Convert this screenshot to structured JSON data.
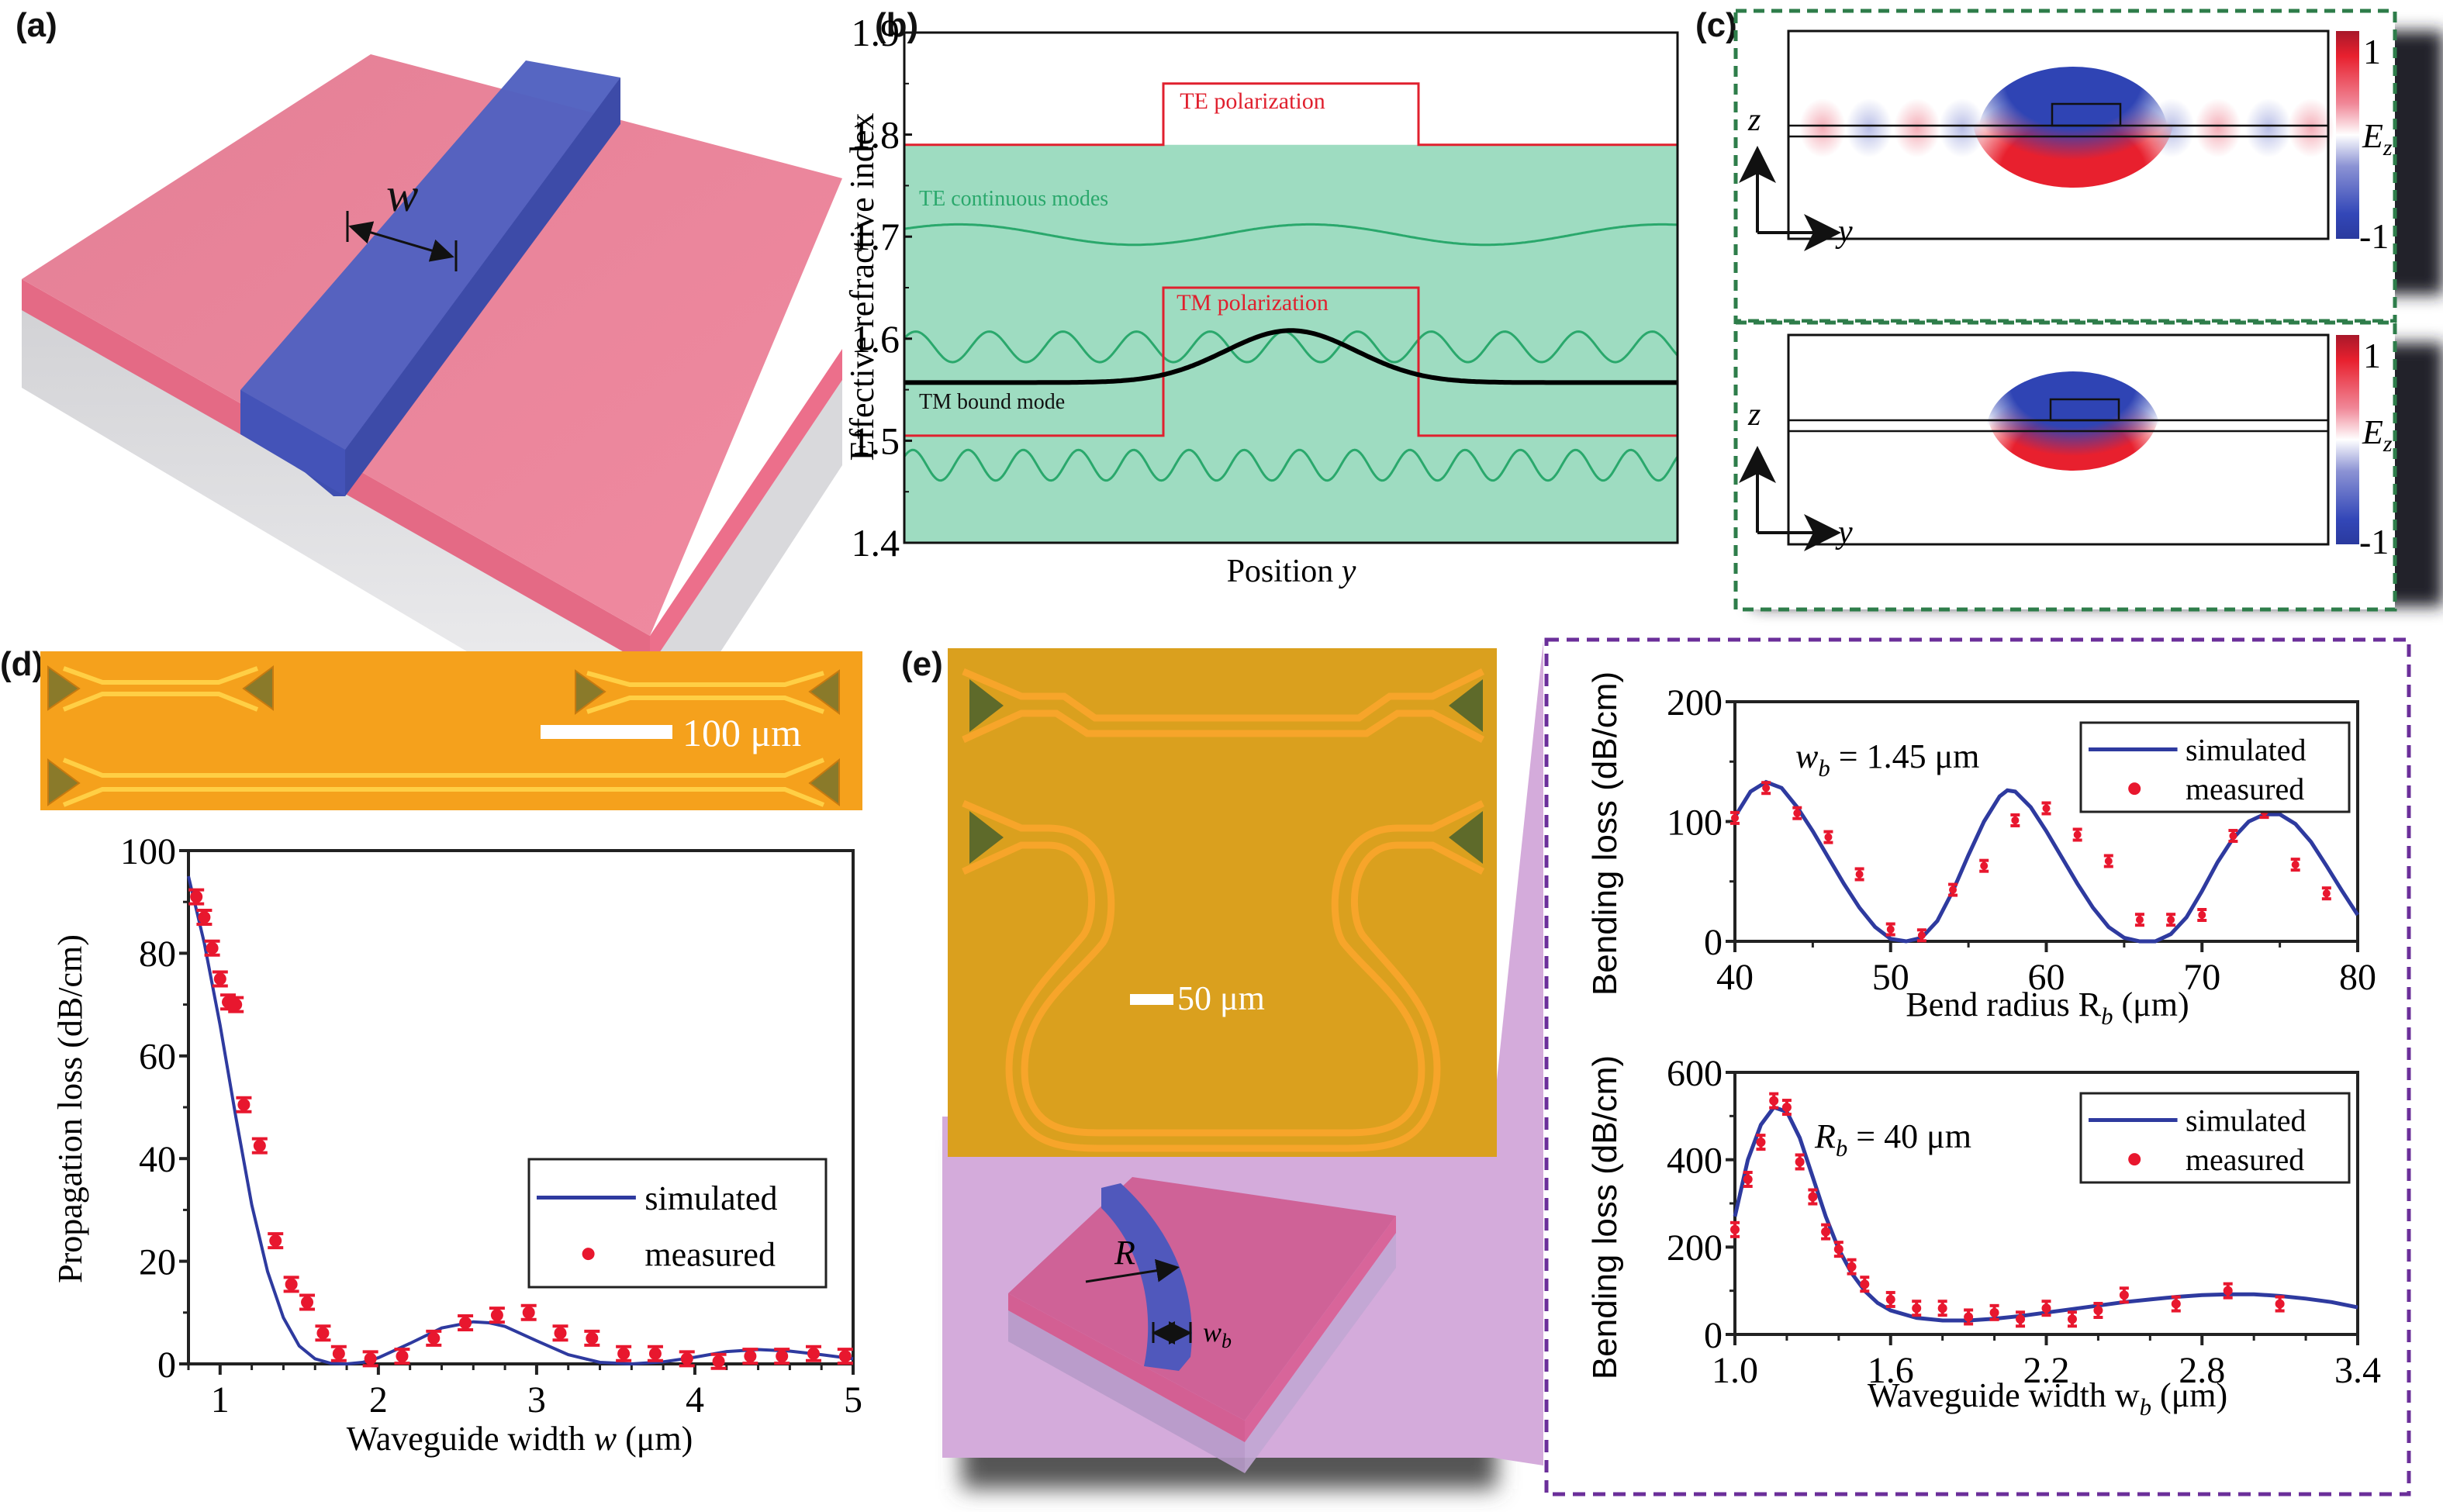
{
  "panel_labels": {
    "a": "(a)",
    "b": "(b)",
    "c": "(c)",
    "d": "(d)",
    "e": "(e)"
  },
  "colors": {
    "slab_pink": "#e8788e",
    "waveguide_blue": "#4a5bbd",
    "substrate_gray": "#d8d8dc",
    "polarization_red": "#e0202e",
    "continuum_green_fill": "#9edcc1",
    "continuum_green_line": "#2aa86c",
    "bound_mode_black": "#000000",
    "sim_blue": "#2e3a9f",
    "meas_red": "#e8172e",
    "photo_orange": "#f5a11c",
    "photo_orange_e": "#dba01f",
    "purple_bg": "#d3acd9",
    "purple_dash": "#6b2f9a",
    "green_dash": "#2e7d4a"
  },
  "panel_a": {
    "width_label": "w"
  },
  "panel_b": {
    "chart_data": {
      "type": "line",
      "title": "",
      "xlabel": "Position y",
      "ylabel": "Effective refractive index",
      "ylim": [
        1.4,
        1.9
      ],
      "yticks": [
        "1.4",
        "1.5",
        "1.6",
        "1.7",
        "1.8",
        "1.9"
      ],
      "ytick_values": [
        1.4,
        1.5,
        1.6,
        1.7,
        1.8,
        1.9
      ],
      "annotations": [
        "TE polarization",
        "TE continuous modes",
        "TM polarization",
        "TM bound mode"
      ],
      "series": [
        {
          "name": "TE polarization",
          "profile": "step",
          "outer": 1.79,
          "inner": 1.85,
          "inner_range": [
            0.335,
            0.665
          ]
        },
        {
          "name": "TM polarization",
          "profile": "step",
          "outer": 1.505,
          "inner": 1.65,
          "inner_range": [
            0.335,
            0.665
          ]
        },
        {
          "name": "TE continuous modes (upper)",
          "profile": "sine",
          "center": 1.702,
          "amplitude": 0.01,
          "cycles": 2.2
        },
        {
          "name": "TE continuous modes (middle)",
          "profile": "sine",
          "center": 1.592,
          "amplitude": 0.015,
          "cycles": 10.5
        },
        {
          "name": "TE continuous modes (lower)",
          "profile": "sine",
          "center": 1.476,
          "amplitude": 0.015,
          "cycles": 14
        },
        {
          "name": "TM bound mode",
          "profile": "gaussian",
          "base": 1.557,
          "peak": 1.608,
          "center": 0.5,
          "width": 0.12
        }
      ],
      "continuum_fill_below": 1.79
    }
  },
  "panel_c": {
    "top": {
      "z_label": "z",
      "y_label": "y",
      "colorbar_max": "1",
      "colorbar_min": "-1",
      "colorbar_label": "E",
      "colorbar_sub": "z"
    },
    "bottom": {
      "z_label": "z",
      "y_label": "y",
      "colorbar_max": "1",
      "colorbar_min": "-1",
      "colorbar_label": "E",
      "colorbar_sub": "z"
    }
  },
  "panel_d": {
    "scale_bar": "100 μm",
    "chart_data": {
      "type": "scatter",
      "title": "",
      "xlabel": "Waveguide width w (μm)",
      "ylabel": "Propagation loss (dB/cm)",
      "xlim": [
        0.8,
        5
      ],
      "ylim": [
        0,
        100
      ],
      "xticks": [
        "1",
        "2",
        "3",
        "4",
        "5"
      ],
      "xtick_values": [
        1,
        2,
        3,
        4,
        5
      ],
      "yticks": [
        "0",
        "20",
        "40",
        "60",
        "80",
        "100"
      ],
      "ytick_values": [
        0,
        20,
        40,
        60,
        80,
        100
      ],
      "legend": {
        "position": "center-right",
        "entries": [
          "simulated",
          "measured"
        ]
      },
      "series": [
        {
          "name": "simulated",
          "kind": "line",
          "x": [
            0.8,
            0.9,
            1.0,
            1.1,
            1.2,
            1.3,
            1.4,
            1.5,
            1.6,
            1.7,
            1.8,
            1.9,
            2.0,
            2.2,
            2.4,
            2.6,
            2.7,
            2.8,
            3.0,
            3.2,
            3.4,
            3.6,
            3.8,
            4.0,
            4.2,
            4.4,
            4.6,
            4.8,
            5.0
          ],
          "y": [
            95,
            82,
            66,
            48,
            31,
            18,
            9,
            3.5,
            1,
            0.1,
            0,
            0.3,
            1.2,
            4,
            7,
            8.2,
            8,
            7.3,
            4.5,
            1.8,
            0.3,
            0,
            0.4,
            1.3,
            2.4,
            2.8,
            2.5,
            1.8,
            1.0
          ]
        },
        {
          "name": "measured",
          "kind": "points",
          "x": [
            0.85,
            0.9,
            0.95,
            1.0,
            1.05,
            1.1,
            1.15,
            1.25,
            1.35,
            1.45,
            1.55,
            1.65,
            1.75,
            1.95,
            2.15,
            2.35,
            2.55,
            2.75,
            2.95,
            3.15,
            3.35,
            3.55,
            3.75,
            3.95,
            4.15,
            4.35,
            4.55,
            4.75,
            4.95
          ],
          "y": [
            91,
            87,
            81,
            75,
            70.5,
            70,
            50.5,
            42.5,
            24,
            15.5,
            12,
            6,
            2,
            1,
            1.5,
            5,
            8,
            9.5,
            10,
            6,
            5,
            2,
            2,
            1,
            0.5,
            1.5,
            1.5,
            2,
            1.5
          ]
        }
      ]
    }
  },
  "panel_e": {
    "scale_bar": "50 μm",
    "render_labels": {
      "radius": "R",
      "width": "w",
      "width_sub": "b"
    },
    "top_chart": {
      "chart_data": {
        "type": "scatter",
        "title": "",
        "annotation": {
          "main": "w",
          "sub": "b",
          "rest": " = 1.45 μm"
        },
        "xlabel": {
          "main": "Bend radius R",
          "sub": "b",
          "rest": " (μm)"
        },
        "ylabel": "Bending loss (dB/cm)",
        "xlim": [
          40,
          80
        ],
        "ylim": [
          0,
          200
        ],
        "xticks": [
          "40",
          "50",
          "60",
          "70",
          "80"
        ],
        "xtick_values": [
          40,
          50,
          60,
          70,
          80
        ],
        "yticks": [
          "0",
          "100",
          "200"
        ],
        "ytick_values": [
          0,
          100,
          200
        ],
        "legend": {
          "position": "top-right",
          "entries": [
            "simulated",
            "measured"
          ]
        },
        "series": [
          {
            "name": "simulated",
            "kind": "line",
            "x": [
              40,
              41,
              42,
              43,
              44,
              45,
              46,
              47,
              48,
              49,
              50,
              51,
              52,
              53,
              54,
              55,
              56,
              57,
              57.5,
              58,
              59,
              60,
              61,
              62,
              63,
              64,
              65,
              66,
              67,
              68,
              69,
              70,
              71,
              72,
              73,
              74,
              75,
              76,
              77,
              78,
              79,
              80
            ],
            "y": [
              104,
              125,
              133,
              128,
              112,
              92,
              70,
              48,
              28,
              12,
              2,
              0,
              3,
              17,
              42,
              72,
              100,
              121,
              126,
              125,
              112,
              92,
              70,
              48,
              28,
              12,
              3,
              0,
              0,
              6,
              20,
              42,
              66,
              86,
              100,
              106,
              106,
              98,
              83,
              63,
              42,
              22
            ]
          },
          {
            "name": "measured",
            "kind": "points",
            "x": [
              40,
              42,
              44,
              46,
              48,
              50,
              52,
              54,
              56,
              58,
              60,
              62,
              64,
              66,
              68,
              70,
              72,
              74,
              76,
              78
            ],
            "y": [
              103,
              128,
              107,
              87,
              56,
              10,
              5,
              43,
              63,
              101,
              111,
              89,
              67,
              18,
              18,
              22,
              88,
              108,
              64,
              40
            ]
          }
        ]
      }
    },
    "bottom_chart": {
      "chart_data": {
        "type": "scatter",
        "title": "",
        "annotation": {
          "main": "R",
          "sub": "b",
          "rest": " = 40 μm"
        },
        "xlabel": {
          "main": "Waveguide width w",
          "sub": "b",
          "rest": " (μm)"
        },
        "ylabel": "Bending loss (dB/cm)",
        "xlim": [
          1.0,
          3.4
        ],
        "ylim": [
          0,
          600
        ],
        "xticks": [
          "1.0",
          "1.6",
          "2.2",
          "2.8",
          "3.4"
        ],
        "xtick_values": [
          1.0,
          1.6,
          2.2,
          2.8,
          3.4
        ],
        "yticks": [
          "0",
          "200",
          "400",
          "600"
        ],
        "ytick_values": [
          0,
          200,
          400,
          600
        ],
        "legend": {
          "position": "top-right",
          "entries": [
            "simulated",
            "measured"
          ]
        },
        "series": [
          {
            "name": "simulated",
            "kind": "line",
            "x": [
              1.0,
              1.05,
              1.1,
              1.15,
              1.2,
              1.25,
              1.3,
              1.35,
              1.4,
              1.45,
              1.5,
              1.55,
              1.6,
              1.7,
              1.8,
              1.9,
              2.0,
              2.1,
              2.2,
              2.3,
              2.4,
              2.5,
              2.6,
              2.7,
              2.8,
              2.9,
              3.0,
              3.1,
              3.2,
              3.3,
              3.4
            ],
            "y": [
              270,
              400,
              480,
              520,
              510,
              450,
              360,
              270,
              195,
              140,
              100,
              72,
              55,
              38,
              32,
              32,
              36,
              42,
              50,
              58,
              66,
              74,
              80,
              86,
              90,
              92,
              92,
              88,
              82,
              74,
              62
            ]
          },
          {
            "name": "measured",
            "kind": "points",
            "x": [
              1.0,
              1.05,
              1.1,
              1.15,
              1.2,
              1.25,
              1.3,
              1.35,
              1.4,
              1.45,
              1.5,
              1.6,
              1.7,
              1.8,
              1.9,
              2.0,
              2.1,
              2.2,
              2.3,
              2.4,
              2.5,
              2.7,
              2.9,
              3.1
            ],
            "y": [
              240,
              355,
              440,
              535,
              520,
              395,
              315,
              235,
              195,
              155,
              115,
              80,
              60,
              60,
              40,
              50,
              35,
              60,
              35,
              55,
              90,
              70,
              100,
              70
            ]
          }
        ]
      }
    }
  }
}
